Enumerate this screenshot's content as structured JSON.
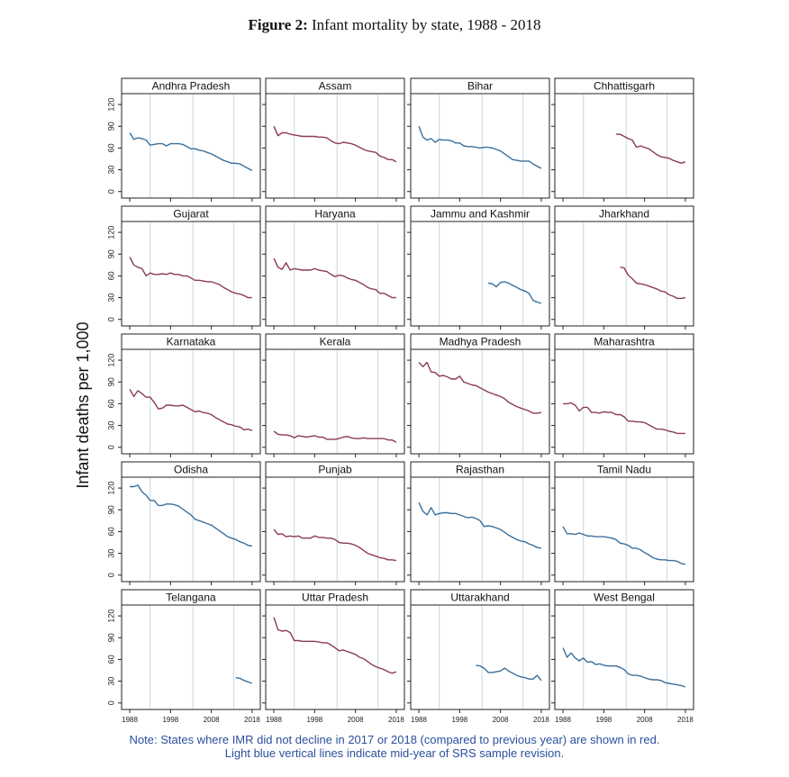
{
  "chart_data": {
    "type": "line",
    "title_label": "Figure 2:",
    "title": "Infant mortality by state, 1988 - 2018",
    "y_label": "Infant deaths per 1,000",
    "notes": [
      "Note: States where IMR did not decline in 2017 or 2018 (compared to previous year) are shown in red.",
      "Light blue vertical lines indicate mid-year of SRS sample revision."
    ],
    "x": [
      1988,
      1989,
      1990,
      1991,
      1992,
      1993,
      1994,
      1995,
      1996,
      1997,
      1998,
      1999,
      2000,
      2001,
      2002,
      2003,
      2004,
      2005,
      2006,
      2007,
      2008,
      2009,
      2010,
      2011,
      2012,
      2013,
      2014,
      2015,
      2016,
      2017,
      2018
    ],
    "xlim": [
      1986,
      2020
    ],
    "xticks": [
      1988,
      1998,
      2008,
      2018
    ],
    "ylim": [
      -9,
      135
    ],
    "yticks": [
      0,
      30,
      60,
      90,
      120
    ],
    "revision_lines": [
      1993,
      2003.5,
      2013.5
    ],
    "revision_color": "#cfdde8",
    "columns": 4,
    "series": [
      {
        "name": "Andhra Pradesh",
        "color": "#3a6f9c",
        "values": [
          81,
          72,
          74,
          73,
          71,
          64,
          65,
          66,
          66,
          63,
          66,
          66,
          66,
          65,
          62,
          59,
          59,
          57,
          56,
          54,
          52,
          49,
          46,
          43,
          41,
          39,
          39,
          38,
          35,
          32,
          29
        ]
      },
      {
        "name": "Assam",
        "color": "#8c3b52",
        "values": [
          90,
          77,
          81,
          81,
          79,
          78,
          77,
          76,
          76,
          76,
          76,
          75,
          75,
          74,
          70,
          67,
          66,
          68,
          67,
          66,
          64,
          61,
          58,
          56,
          55,
          54,
          49,
          47,
          44,
          44,
          41
        ]
      },
      {
        "name": "Bihar",
        "color": "#3a6f9c",
        "values": [
          90,
          75,
          71,
          73,
          68,
          72,
          71,
          71,
          70,
          67,
          67,
          63,
          62,
          62,
          61,
          60,
          61,
          61,
          60,
          58,
          56,
          52,
          48,
          44,
          43,
          42,
          42,
          42,
          38,
          35,
          32
        ]
      },
      {
        "name": "Chhattisgarh",
        "color": "#8c3b52",
        "values": [
          null,
          null,
          null,
          null,
          null,
          null,
          null,
          null,
          null,
          null,
          null,
          null,
          null,
          79,
          79,
          76,
          73,
          71,
          61,
          63,
          61,
          59,
          55,
          51,
          48,
          47,
          46,
          43,
          41,
          39,
          41
        ]
      },
      {
        "name": "Gujarat",
        "color": "#8c3b52",
        "values": [
          86,
          75,
          72,
          70,
          60,
          64,
          62,
          62,
          63,
          62,
          64,
          62,
          62,
          60,
          60,
          57,
          54,
          54,
          53,
          52,
          52,
          50,
          48,
          44,
          41,
          38,
          36,
          35,
          33,
          30,
          30
        ]
      },
      {
        "name": "Haryana",
        "color": "#8c3b52",
        "values": [
          84,
          72,
          69,
          78,
          68,
          70,
          69,
          68,
          68,
          68,
          70,
          68,
          67,
          66,
          62,
          59,
          61,
          60,
          57,
          55,
          54,
          51,
          48,
          44,
          42,
          41,
          36,
          36,
          33,
          30,
          30
        ]
      },
      {
        "name": "Jammu and Kashmir",
        "color": "#3a6f9c",
        "values": [
          null,
          null,
          null,
          null,
          null,
          null,
          null,
          null,
          null,
          null,
          null,
          null,
          null,
          null,
          null,
          null,
          null,
          50,
          49,
          45,
          51,
          52,
          50,
          47,
          44,
          41,
          39,
          36,
          26,
          24,
          22
        ]
      },
      {
        "name": "Jharkhand",
        "color": "#8c3b52",
        "values": [
          null,
          null,
          null,
          null,
          null,
          null,
          null,
          null,
          null,
          null,
          null,
          null,
          null,
          null,
          72,
          71,
          61,
          56,
          50,
          49,
          48,
          46,
          44,
          42,
          39,
          38,
          34,
          32,
          29,
          29,
          30
        ]
      },
      {
        "name": "Karnataka",
        "color": "#8c3b52",
        "values": [
          80,
          70,
          78,
          74,
          69,
          69,
          62,
          53,
          54,
          58,
          58,
          57,
          57,
          58,
          55,
          52,
          49,
          50,
          48,
          47,
          45,
          41,
          38,
          35,
          32,
          31,
          29,
          28,
          24,
          25,
          23
        ]
      },
      {
        "name": "Kerala",
        "color": "#8c3b52",
        "values": [
          22,
          18,
          17,
          17,
          16,
          13,
          16,
          15,
          14,
          15,
          16,
          14,
          14,
          11,
          11,
          11,
          12,
          14,
          15,
          13,
          12,
          12,
          13,
          12,
          12,
          12,
          12,
          12,
          10,
          10,
          7
        ]
      },
      {
        "name": "Madhya Pradesh",
        "color": "#8c3b52",
        "values": [
          117,
          111,
          117,
          104,
          103,
          98,
          99,
          97,
          94,
          94,
          98,
          90,
          88,
          86,
          85,
          82,
          79,
          76,
          74,
          72,
          70,
          67,
          62,
          59,
          56,
          54,
          52,
          50,
          47,
          47,
          48
        ]
      },
      {
        "name": "Maharashtra",
        "color": "#8c3b52",
        "values": [
          60,
          60,
          61,
          58,
          50,
          55,
          55,
          48,
          48,
          47,
          49,
          48,
          48,
          45,
          45,
          42,
          36,
          36,
          35,
          35,
          34,
          31,
          28,
          25,
          25,
          24,
          22,
          21,
          19,
          19,
          19
        ]
      },
      {
        "name": "Odisha",
        "color": "#3a6f9c",
        "values": [
          122,
          122,
          124,
          115,
          110,
          103,
          103,
          96,
          96,
          98,
          98,
          97,
          95,
          91,
          87,
          83,
          77,
          75,
          73,
          71,
          69,
          65,
          61,
          57,
          53,
          51,
          49,
          46,
          44,
          41,
          40
        ]
      },
      {
        "name": "Punjab",
        "color": "#8c3b52",
        "values": [
          63,
          56,
          57,
          53,
          54,
          53,
          54,
          51,
          51,
          51,
          54,
          52,
          52,
          51,
          51,
          49,
          45,
          44,
          44,
          43,
          41,
          38,
          34,
          30,
          28,
          26,
          24,
          23,
          21,
          21,
          20
        ]
      },
      {
        "name": "Rajasthan",
        "color": "#3a6f9c",
        "values": [
          100,
          88,
          83,
          93,
          83,
          85,
          86,
          86,
          85,
          85,
          83,
          81,
          79,
          80,
          78,
          75,
          67,
          68,
          67,
          65,
          63,
          59,
          55,
          52,
          49,
          47,
          46,
          43,
          41,
          38,
          37
        ]
      },
      {
        "name": "Tamil Nadu",
        "color": "#3a6f9c",
        "values": [
          67,
          57,
          57,
          56,
          58,
          56,
          54,
          54,
          53,
          53,
          53,
          52,
          51,
          49,
          44,
          43,
          41,
          37,
          37,
          35,
          31,
          28,
          24,
          22,
          21,
          21,
          20,
          20,
          19,
          16,
          15
        ]
      },
      {
        "name": "Telangana",
        "color": "#3a6f9c",
        "values": [
          null,
          null,
          null,
          null,
          null,
          null,
          null,
          null,
          null,
          null,
          null,
          null,
          null,
          null,
          null,
          null,
          null,
          null,
          null,
          null,
          null,
          null,
          null,
          null,
          null,
          null,
          35,
          34,
          31,
          29,
          27
        ]
      },
      {
        "name": "Uttar Pradesh",
        "color": "#8c3b52",
        "values": [
          118,
          101,
          99,
          100,
          97,
          86,
          86,
          85,
          85,
          85,
          85,
          84,
          83,
          83,
          80,
          76,
          72,
          73,
          71,
          69,
          67,
          63,
          61,
          57,
          53,
          50,
          48,
          46,
          43,
          41,
          43
        ]
      },
      {
        "name": "Uttarakhand",
        "color": "#3a6f9c",
        "values": [
          null,
          null,
          null,
          null,
          null,
          null,
          null,
          null,
          null,
          null,
          null,
          null,
          null,
          null,
          52,
          51,
          48,
          42,
          42,
          43,
          44,
          48,
          44,
          41,
          38,
          36,
          35,
          33,
          33,
          38,
          31
        ]
      },
      {
        "name": "West Bengal",
        "color": "#3a6f9c",
        "values": [
          76,
          63,
          69,
          62,
          58,
          62,
          56,
          57,
          53,
          54,
          52,
          51,
          51,
          51,
          49,
          46,
          40,
          38,
          38,
          37,
          35,
          33,
          32,
          32,
          31,
          28,
          27,
          26,
          25,
          24,
          22
        ]
      }
    ]
  }
}
